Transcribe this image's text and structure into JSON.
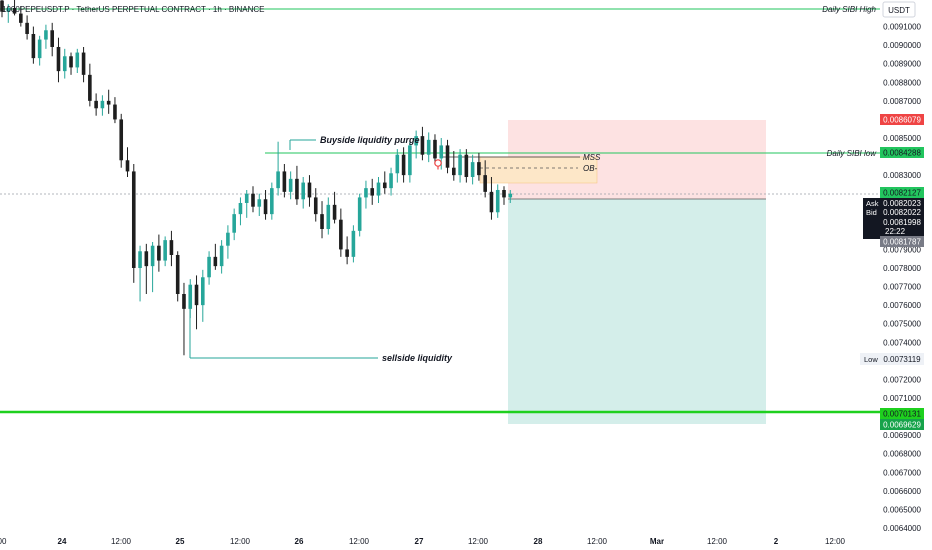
{
  "header": {
    "title": "1000PEPEUSDT.P · TetherUS PERPETUAL CONTRACT · 1h · BINANCE",
    "currency_button": "USDT"
  },
  "colors": {
    "up": "#26a69a",
    "down": "#1e1e1e",
    "green_line": "#22c55e",
    "bright_green": "#1ed01e",
    "red_zone": "#fde2e2",
    "green_zone": "#d4eeea",
    "ob_zone": "#fde7c8",
    "price_red": "#ef4444",
    "price_green": "#16a34a",
    "grey_label": "#787b86",
    "black_label": "#131722"
  },
  "chart_data": {
    "type": "candlestick",
    "title": "1000PEPEUSDT.P · TetherUS PERPETUAL CONTRACT · 1h · BINANCE",
    "y_axis": {
      "min": 0.0064,
      "max": 0.0092,
      "ticks": [
        "0.0091000",
        "0.0090000",
        "0.0089000",
        "0.0088000",
        "0.0087000",
        "0.0085000",
        "0.0083000",
        "0.0079000",
        "0.0078000",
        "0.0077000",
        "0.0076000",
        "0.0075000",
        "0.0074000",
        "0.0072000",
        "0.0071000",
        "0.0069000",
        "0.0068000",
        "0.0067000",
        "0.0066000",
        "0.0065000",
        "0.0064000"
      ],
      "tick_values": [
        0.0091,
        0.009,
        0.0089,
        0.0088,
        0.0087,
        0.0085,
        0.0083,
        0.0079,
        0.0078,
        0.0077,
        0.0076,
        0.0075,
        0.0074,
        0.0072,
        0.0071,
        0.0069,
        0.0068,
        0.0067,
        0.0066,
        0.0065,
        0.0064
      ]
    },
    "x_axis": {
      "labels": [
        "00",
        "24",
        "12:00",
        "25",
        "12:00",
        "26",
        "12:00",
        "27",
        "12:00",
        "28",
        "12:00",
        "Mar",
        "12:00",
        "2",
        "12:00"
      ],
      "bold_labels": [
        "24",
        "25",
        "26",
        "27",
        "28",
        "Mar",
        "2"
      ]
    },
    "candles": [
      {
        "o": 0.00924,
        "h": 0.00928,
        "l": 0.00915,
        "c": 0.00918
      },
      {
        "o": 0.00918,
        "h": 0.00922,
        "l": 0.00912,
        "c": 0.0092
      },
      {
        "o": 0.0092,
        "h": 0.00925,
        "l": 0.00916,
        "c": 0.00917
      },
      {
        "o": 0.00917,
        "h": 0.00921,
        "l": 0.0091,
        "c": 0.00912
      },
      {
        "o": 0.00912,
        "h": 0.00916,
        "l": 0.00903,
        "c": 0.00906
      },
      {
        "o": 0.00906,
        "h": 0.0091,
        "l": 0.0089,
        "c": 0.00893
      },
      {
        "o": 0.00893,
        "h": 0.00905,
        "l": 0.00889,
        "c": 0.00903
      },
      {
        "o": 0.00903,
        "h": 0.00911,
        "l": 0.00898,
        "c": 0.00908
      },
      {
        "o": 0.00908,
        "h": 0.00912,
        "l": 0.00894,
        "c": 0.00899
      },
      {
        "o": 0.00899,
        "h": 0.00904,
        "l": 0.0088,
        "c": 0.00886
      },
      {
        "o": 0.00886,
        "h": 0.00898,
        "l": 0.00882,
        "c": 0.00894
      },
      {
        "o": 0.00894,
        "h": 0.00896,
        "l": 0.00884,
        "c": 0.00888
      },
      {
        "o": 0.00888,
        "h": 0.00898,
        "l": 0.00885,
        "c": 0.00896
      },
      {
        "o": 0.00896,
        "h": 0.00899,
        "l": 0.0088,
        "c": 0.00884
      },
      {
        "o": 0.00884,
        "h": 0.0089,
        "l": 0.00867,
        "c": 0.0087
      },
      {
        "o": 0.0087,
        "h": 0.00874,
        "l": 0.00862,
        "c": 0.00866
      },
      {
        "o": 0.00866,
        "h": 0.00873,
        "l": 0.00862,
        "c": 0.0087
      },
      {
        "o": 0.0087,
        "h": 0.00876,
        "l": 0.00863,
        "c": 0.00868
      },
      {
        "o": 0.00868,
        "h": 0.00872,
        "l": 0.00858,
        "c": 0.0086
      },
      {
        "o": 0.0086,
        "h": 0.00863,
        "l": 0.00834,
        "c": 0.00838
      },
      {
        "o": 0.00838,
        "h": 0.00845,
        "l": 0.00829,
        "c": 0.00832
      },
      {
        "o": 0.00832,
        "h": 0.00836,
        "l": 0.00772,
        "c": 0.0078
      },
      {
        "o": 0.0078,
        "h": 0.00792,
        "l": 0.00762,
        "c": 0.00789
      },
      {
        "o": 0.00789,
        "h": 0.00793,
        "l": 0.00766,
        "c": 0.00781
      },
      {
        "o": 0.00781,
        "h": 0.00794,
        "l": 0.00767,
        "c": 0.00792
      },
      {
        "o": 0.00792,
        "h": 0.00798,
        "l": 0.00778,
        "c": 0.00784
      },
      {
        "o": 0.00784,
        "h": 0.00797,
        "l": 0.00781,
        "c": 0.00795
      },
      {
        "o": 0.00795,
        "h": 0.008,
        "l": 0.00781,
        "c": 0.00787
      },
      {
        "o": 0.00787,
        "h": 0.00789,
        "l": 0.00762,
        "c": 0.00766
      },
      {
        "o": 0.00766,
        "h": 0.00772,
        "l": 0.00733,
        "c": 0.00758
      },
      {
        "o": 0.00758,
        "h": 0.00774,
        "l": 0.00753,
        "c": 0.00771
      },
      {
        "o": 0.00771,
        "h": 0.00776,
        "l": 0.00747,
        "c": 0.0076
      },
      {
        "o": 0.0076,
        "h": 0.00779,
        "l": 0.00751,
        "c": 0.00775
      },
      {
        "o": 0.00775,
        "h": 0.00789,
        "l": 0.00771,
        "c": 0.00786
      },
      {
        "o": 0.00786,
        "h": 0.00793,
        "l": 0.00779,
        "c": 0.00781
      },
      {
        "o": 0.00781,
        "h": 0.00795,
        "l": 0.00777,
        "c": 0.00792
      },
      {
        "o": 0.00792,
        "h": 0.00803,
        "l": 0.00785,
        "c": 0.00799
      },
      {
        "o": 0.00799,
        "h": 0.00812,
        "l": 0.00795,
        "c": 0.00809
      },
      {
        "o": 0.00809,
        "h": 0.00818,
        "l": 0.00803,
        "c": 0.00815
      },
      {
        "o": 0.00815,
        "h": 0.00822,
        "l": 0.00807,
        "c": 0.0082
      },
      {
        "o": 0.0082,
        "h": 0.00824,
        "l": 0.0081,
        "c": 0.00813
      },
      {
        "o": 0.00813,
        "h": 0.0082,
        "l": 0.00808,
        "c": 0.00817
      },
      {
        "o": 0.00817,
        "h": 0.00822,
        "l": 0.00806,
        "c": 0.00809
      },
      {
        "o": 0.00809,
        "h": 0.00826,
        "l": 0.00806,
        "c": 0.00823
      },
      {
        "o": 0.00823,
        "h": 0.00848,
        "l": 0.00819,
        "c": 0.00832
      },
      {
        "o": 0.00832,
        "h": 0.00836,
        "l": 0.00818,
        "c": 0.00821
      },
      {
        "o": 0.00821,
        "h": 0.00832,
        "l": 0.00817,
        "c": 0.00828
      },
      {
        "o": 0.00828,
        "h": 0.00835,
        "l": 0.00814,
        "c": 0.00817
      },
      {
        "o": 0.00817,
        "h": 0.00829,
        "l": 0.00812,
        "c": 0.00826
      },
      {
        "o": 0.00826,
        "h": 0.0083,
        "l": 0.00813,
        "c": 0.00818
      },
      {
        "o": 0.00818,
        "h": 0.00823,
        "l": 0.00805,
        "c": 0.00809
      },
      {
        "o": 0.00809,
        "h": 0.00816,
        "l": 0.00796,
        "c": 0.00801
      },
      {
        "o": 0.00801,
        "h": 0.00818,
        "l": 0.00798,
        "c": 0.00814
      },
      {
        "o": 0.00814,
        "h": 0.00821,
        "l": 0.00804,
        "c": 0.00806
      },
      {
        "o": 0.00806,
        "h": 0.00812,
        "l": 0.00786,
        "c": 0.0079
      },
      {
        "o": 0.0079,
        "h": 0.00797,
        "l": 0.00782,
        "c": 0.00786
      },
      {
        "o": 0.00786,
        "h": 0.00803,
        "l": 0.00783,
        "c": 0.008
      },
      {
        "o": 0.008,
        "h": 0.0082,
        "l": 0.00797,
        "c": 0.00818
      },
      {
        "o": 0.00818,
        "h": 0.00827,
        "l": 0.00812,
        "c": 0.00823
      },
      {
        "o": 0.00823,
        "h": 0.00828,
        "l": 0.00814,
        "c": 0.00819
      },
      {
        "o": 0.00819,
        "h": 0.00829,
        "l": 0.00815,
        "c": 0.00826
      },
      {
        "o": 0.00826,
        "h": 0.00832,
        "l": 0.0082,
        "c": 0.00823
      },
      {
        "o": 0.00823,
        "h": 0.00834,
        "l": 0.00819,
        "c": 0.00831
      },
      {
        "o": 0.00831,
        "h": 0.00844,
        "l": 0.00826,
        "c": 0.00841
      },
      {
        "o": 0.00841,
        "h": 0.00845,
        "l": 0.00826,
        "c": 0.0083
      },
      {
        "o": 0.0083,
        "h": 0.00848,
        "l": 0.00826,
        "c": 0.00846
      },
      {
        "o": 0.00846,
        "h": 0.00854,
        "l": 0.00839,
        "c": 0.00851
      },
      {
        "o": 0.00851,
        "h": 0.00856,
        "l": 0.00838,
        "c": 0.00841
      },
      {
        "o": 0.00841,
        "h": 0.00853,
        "l": 0.00837,
        "c": 0.00849
      },
      {
        "o": 0.00849,
        "h": 0.00852,
        "l": 0.00836,
        "c": 0.00839
      },
      {
        "o": 0.00839,
        "h": 0.0085,
        "l": 0.00833,
        "c": 0.00846
      },
      {
        "o": 0.00846,
        "h": 0.00849,
        "l": 0.00831,
        "c": 0.00834
      },
      {
        "o": 0.00834,
        "h": 0.00843,
        "l": 0.00827,
        "c": 0.0083
      },
      {
        "o": 0.0083,
        "h": 0.00844,
        "l": 0.00826,
        "c": 0.00841
      },
      {
        "o": 0.00841,
        "h": 0.00844,
        "l": 0.00826,
        "c": 0.00829
      },
      {
        "o": 0.00829,
        "h": 0.00841,
        "l": 0.00825,
        "c": 0.00837
      },
      {
        "o": 0.00837,
        "h": 0.00842,
        "l": 0.00827,
        "c": 0.0083
      },
      {
        "o": 0.0083,
        "h": 0.00838,
        "l": 0.00818,
        "c": 0.00821
      },
      {
        "o": 0.00821,
        "h": 0.00829,
        "l": 0.00806,
        "c": 0.0081
      },
      {
        "o": 0.0081,
        "h": 0.00825,
        "l": 0.00807,
        "c": 0.00822
      },
      {
        "o": 0.00822,
        "h": 0.00824,
        "l": 0.00814,
        "c": 0.00818
      },
      {
        "o": 0.00818,
        "h": 0.00822,
        "l": 0.00815,
        "c": 0.0082
      }
    ]
  },
  "price_scale": {
    "daily_sibi_high_label": "Daily SIBI High",
    "red_label": "0.0086079",
    "daily_sibi_low_label": "Daily SIBI low",
    "sibi_low_price": "0.0084288",
    "current_price": "0.0082127",
    "ask_label": "Ask",
    "ask_price": "0.0082023",
    "bid_label": "Bid",
    "bid_price": "0.0082022",
    "last_price": "0.0081998",
    "countdown": "22:22",
    "grey_price": "0.0081787",
    "low_label": "Low",
    "low_price": "0.0073119",
    "target_price": "0.0070131",
    "stop_price": "0.0069629"
  },
  "annotations": {
    "buyside": "Buyside liquidity purge",
    "sellside": "sellside liquidity",
    "mss": "MSS",
    "ob": "OB-"
  }
}
